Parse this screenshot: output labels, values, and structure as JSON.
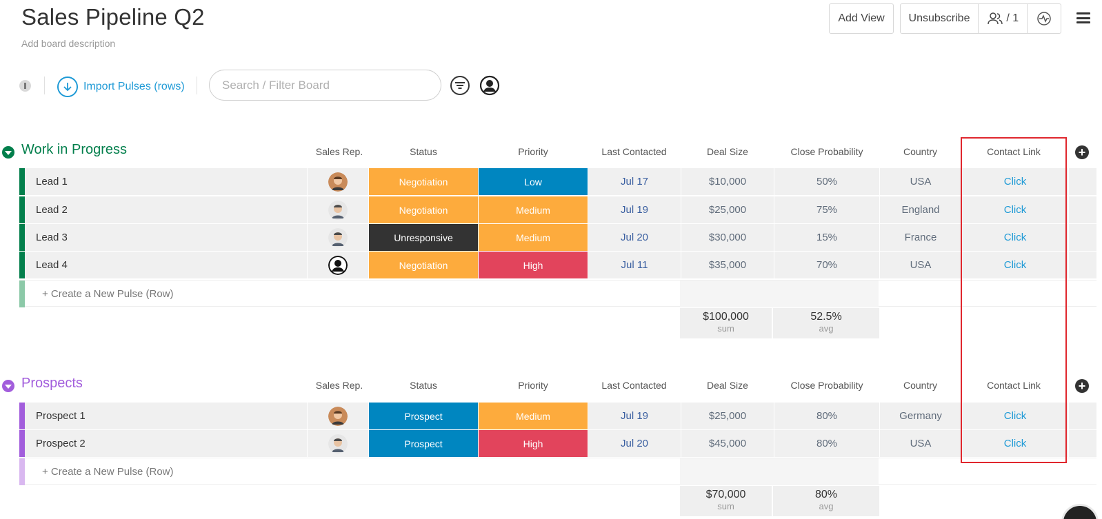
{
  "board": {
    "title": "Sales Pipeline Q2",
    "description": "Add board description"
  },
  "header": {
    "add_view": "Add View",
    "unsubscribe": "Unsubscribe",
    "members": "/ 1"
  },
  "toolbar": {
    "import_label": "Import Pulses (rows)",
    "search_placeholder": "Search / Filter Board"
  },
  "columns": [
    "Sales Rep.",
    "Status",
    "Priority",
    "Last Contacted",
    "Deal Size",
    "Close Probability",
    "Country",
    "Contact Link"
  ],
  "colors": {
    "negotiation": "#fdab3d",
    "unresponsive": "#333333",
    "prospect": "#0086c0",
    "low": "#0086c0",
    "medium": "#fdab3d",
    "high": "#e2445c",
    "group1": "#037f4c",
    "group2": "#a25ddc",
    "highlight": "#e0262d"
  },
  "groups": [
    {
      "title": "Work in Progress",
      "color": "#037f4c",
      "rows": [
        {
          "name": "Lead 1",
          "avatar": "avatar-brown-hair",
          "status": "Negotiation",
          "priority": "Low",
          "last_contacted": "Jul 17",
          "deal_size": "$10,000",
          "close_probability": "50%",
          "country": "USA",
          "contact_link": "Click"
        },
        {
          "name": "Lead 2",
          "avatar": "avatar-man",
          "status": "Negotiation",
          "priority": "Medium",
          "last_contacted": "Jul 19",
          "deal_size": "$25,000",
          "close_probability": "75%",
          "country": "England",
          "contact_link": "Click"
        },
        {
          "name": "Lead 3",
          "avatar": "avatar-man",
          "status": "Unresponsive",
          "priority": "Medium",
          "last_contacted": "Jul 20",
          "deal_size": "$30,000",
          "close_probability": "15%",
          "country": "France",
          "contact_link": "Click"
        },
        {
          "name": "Lead 4",
          "avatar": "avatar-generic",
          "status": "Negotiation",
          "priority": "High",
          "last_contacted": "Jul 11",
          "deal_size": "$35,000",
          "close_probability": "70%",
          "country": "USA",
          "contact_link": "Click"
        }
      ],
      "new_row_label": "+ Create a New Pulse (Row)",
      "sum_value": "$100,000",
      "sum_label": "sum",
      "avg_value": "52.5%",
      "avg_label": "avg"
    },
    {
      "title": "Prospects",
      "color": "#a25ddc",
      "rows": [
        {
          "name": "Prospect 1",
          "avatar": "avatar-brown-hair",
          "status": "Prospect",
          "priority": "Medium",
          "last_contacted": "Jul 19",
          "deal_size": "$25,000",
          "close_probability": "80%",
          "country": "Germany",
          "contact_link": "Click"
        },
        {
          "name": "Prospect 2",
          "avatar": "avatar-man",
          "status": "Prospect",
          "priority": "High",
          "last_contacted": "Jul 20",
          "deal_size": "$45,000",
          "close_probability": "80%",
          "country": "USA",
          "contact_link": "Click"
        }
      ],
      "new_row_label": "+ Create a New Pulse (Row)",
      "sum_value": "$70,000",
      "sum_label": "sum",
      "avg_value": "80%",
      "avg_label": "avg"
    }
  ]
}
